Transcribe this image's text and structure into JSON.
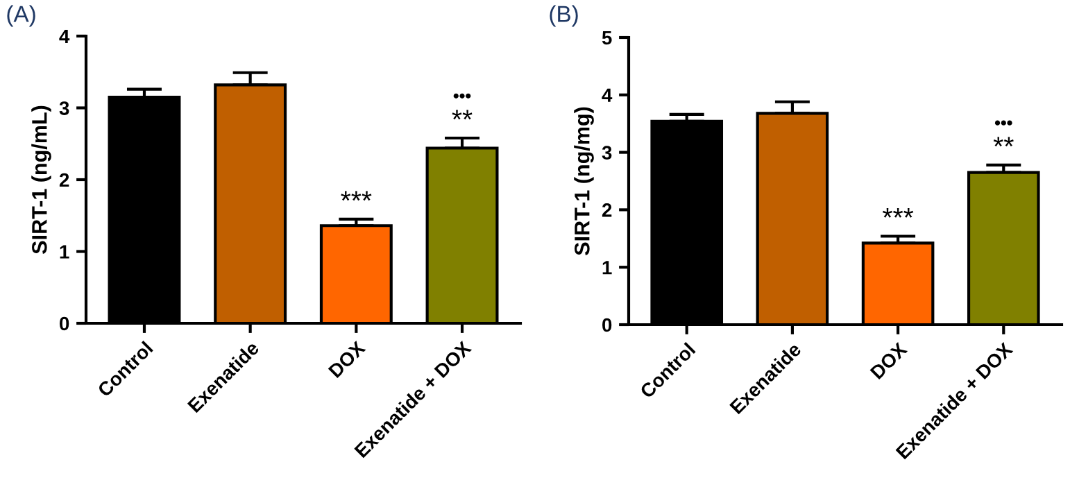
{
  "chart_data": [
    {
      "type": "bar",
      "title": "(A)",
      "ylabel": "SIRT-1 (ng/mL)",
      "categories": [
        "Control",
        "Exenatide",
        "DOX",
        "Exenatide + DOX"
      ],
      "values": [
        3.15,
        3.32,
        1.36,
        2.44
      ],
      "colors": [
        "#000000",
        "#c05f00",
        "#ff6600",
        "#808000"
      ],
      "errors": [
        [
          3.15,
          3.26
        ],
        [
          3.32,
          3.49
        ],
        [
          1.36,
          1.45
        ],
        [
          2.44,
          2.58
        ]
      ],
      "ylim": [
        0,
        4
      ],
      "yticks": [
        0,
        1,
        2,
        3,
        4
      ],
      "grid": false,
      "legend": false,
      "annotations": [
        {
          "text": "***",
          "x": "DOX",
          "y": 1.45
        },
        {
          "text": "**",
          "x": "Exenatide + DOX",
          "y": 2.58
        },
        "•••"
      ]
    },
    {
      "type": "bar",
      "title": "(B)",
      "ylabel": "SIRT-1 (ng/mg)",
      "categories": [
        "Control",
        "Exenatide",
        "DOX",
        "Exenatide + DOX"
      ],
      "values": [
        3.54,
        3.68,
        1.42,
        2.65
      ],
      "colors": [
        "#000000",
        "#c05f00",
        "#ff6600",
        "#808000"
      ],
      "errors": [
        [
          3.54,
          3.66
        ],
        [
          3.68,
          3.88
        ],
        [
          1.42,
          1.54
        ],
        [
          2.65,
          2.78
        ]
      ],
      "ylim": [
        0,
        5
      ],
      "yticks": [
        0,
        1,
        2,
        3,
        4,
        5
      ],
      "grid": false,
      "legend": false,
      "annotations": [
        {
          "text": "***",
          "x": "DOX",
          "y": 1.54
        },
        {
          "text": "**",
          "x": "Exenatide + DOX",
          "y": 2.78
        },
        "•••"
      ]
    }
  ]
}
